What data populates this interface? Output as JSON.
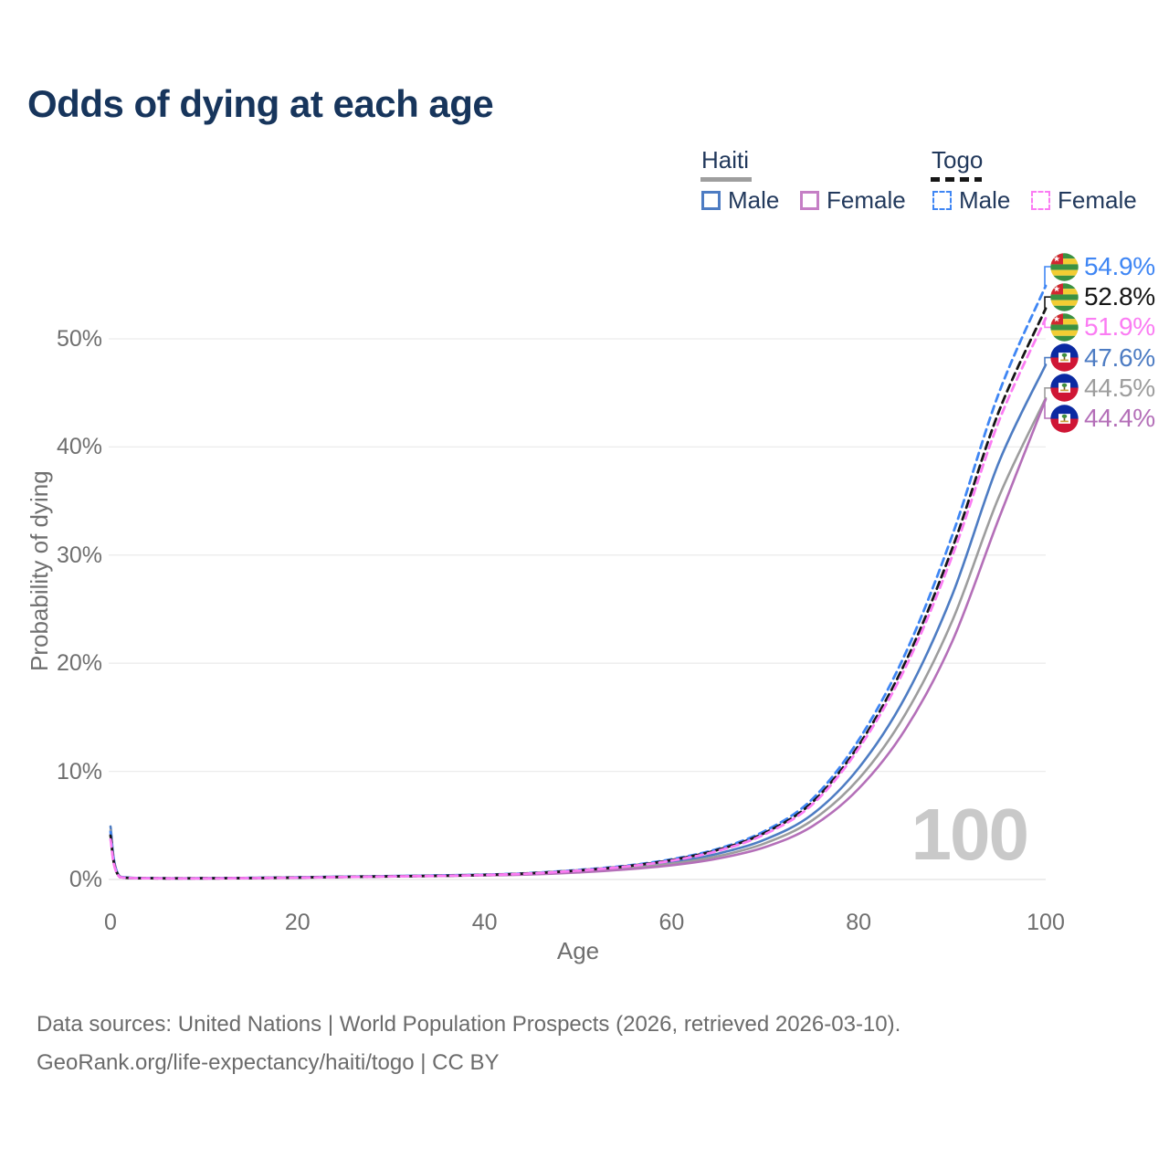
{
  "header": {
    "title": "Odds of dying at each age"
  },
  "legend": {
    "groups": [
      {
        "name": "Haiti",
        "line_style": "solid",
        "underline_color": "#9e9e9e",
        "items": [
          {
            "label": "Male",
            "color": "#4d7cc3"
          },
          {
            "label": "Female",
            "color": "#c57fc5"
          }
        ]
      },
      {
        "name": "Togo",
        "line_style": "dashed",
        "underline_color": "#161616",
        "items": [
          {
            "label": "Male",
            "color": "#3f86f4"
          },
          {
            "label": "Female",
            "color": "#fb7cf3"
          }
        ]
      }
    ]
  },
  "axes": {
    "x_label": "Age",
    "y_label": "Probability of dying",
    "x_ticks": [
      {
        "v": 0,
        "label": "0"
      },
      {
        "v": 20,
        "label": "20"
      },
      {
        "v": 40,
        "label": "40"
      },
      {
        "v": 60,
        "label": "60"
      },
      {
        "v": 80,
        "label": "80"
      },
      {
        "v": 100,
        "label": "100"
      }
    ],
    "y_ticks": [
      {
        "v": 0,
        "label": "0%"
      },
      {
        "v": 10,
        "label": "10%"
      },
      {
        "v": 20,
        "label": "20%"
      },
      {
        "v": 30,
        "label": "30%"
      },
      {
        "v": 40,
        "label": "40%"
      },
      {
        "v": 50,
        "label": "50%"
      }
    ]
  },
  "watermark_age": "100",
  "footer": {
    "line1": "Data sources: United Nations | World Population Prospects (2026, retrieved 2026-03-10).",
    "line2": "GeoRank.org/life-expectancy/haiti/togo | CC BY"
  },
  "chart_data": {
    "type": "line",
    "title": "Odds of dying at each age",
    "xlabel": "Age",
    "ylabel": "Probability of dying",
    "unit": "percent",
    "xlim": [
      0,
      100
    ],
    "ylim": [
      0,
      57
    ],
    "grid": "horizontal",
    "legend_position": "top-right",
    "ages": [
      0,
      1,
      5,
      10,
      15,
      20,
      25,
      30,
      35,
      40,
      45,
      50,
      55,
      60,
      65,
      70,
      75,
      80,
      85,
      90,
      95,
      100
    ],
    "series": [
      {
        "name": "Togo — Male",
        "country": "Togo",
        "sex": "Male",
        "flag": "togo",
        "color": "#3f86f4",
        "dashed": true,
        "end_label": "54.9%",
        "end_value": 54.9,
        "values": [
          4.4,
          0.25,
          0.12,
          0.11,
          0.14,
          0.19,
          0.25,
          0.3,
          0.36,
          0.44,
          0.6,
          0.88,
          1.26,
          1.87,
          2.85,
          4.5,
          7.4,
          12.9,
          20.9,
          31.8,
          45.0,
          54.9
        ]
      },
      {
        "name": "Togo — Both sexes",
        "country": "Togo",
        "sex": "Both",
        "flag": "togo",
        "color": "#161616",
        "dashed": true,
        "end_label": "52.8%",
        "end_value": 52.8,
        "values": [
          4.05,
          0.23,
          0.11,
          0.11,
          0.13,
          0.18,
          0.24,
          0.29,
          0.34,
          0.42,
          0.58,
          0.84,
          1.21,
          1.8,
          2.75,
          4.33,
          7.1,
          12.4,
          20.1,
          30.6,
          43.3,
          52.8
        ]
      },
      {
        "name": "Togo — Female",
        "country": "Togo",
        "sex": "Female",
        "flag": "togo",
        "color": "#fb7cf3",
        "dashed": true,
        "end_label": "51.9%",
        "end_value": 51.9,
        "values": [
          3.7,
          0.22,
          0.11,
          0.1,
          0.13,
          0.17,
          0.23,
          0.28,
          0.33,
          0.41,
          0.56,
          0.82,
          1.18,
          1.74,
          2.66,
          4.2,
          6.9,
          12.1,
          19.6,
          29.9,
          42.4,
          51.9
        ]
      },
      {
        "name": "Haiti — Male",
        "country": "Haiti",
        "sex": "Male",
        "flag": "haiti",
        "color": "#4d7cc3",
        "dashed": false,
        "end_label": "47.6%",
        "end_value": 47.6,
        "values": [
          4.9,
          0.27,
          0.13,
          0.12,
          0.15,
          0.21,
          0.27,
          0.32,
          0.38,
          0.45,
          0.57,
          0.79,
          1.12,
          1.6,
          2.4,
          3.7,
          6.0,
          10.3,
          16.9,
          26.3,
          38.6,
          47.6
        ]
      },
      {
        "name": "Haiti — Both sexes",
        "country": "Haiti",
        "sex": "Both",
        "flag": "haiti",
        "color": "#9d9d9d",
        "dashed": false,
        "end_label": "44.5%",
        "end_value": 44.5,
        "values": [
          4.55,
          0.25,
          0.12,
          0.11,
          0.14,
          0.19,
          0.25,
          0.3,
          0.35,
          0.41,
          0.52,
          0.72,
          1.02,
          1.46,
          2.16,
          3.35,
          5.45,
          9.3,
          15.3,
          23.9,
          35.4,
          44.5
        ]
      },
      {
        "name": "Haiti — Female",
        "country": "Haiti",
        "sex": "Female",
        "flag": "haiti",
        "color": "#b46fb8",
        "dashed": false,
        "end_label": "44.4%",
        "end_value": 44.4,
        "values": [
          4.2,
          0.23,
          0.11,
          0.11,
          0.13,
          0.18,
          0.23,
          0.28,
          0.32,
          0.38,
          0.47,
          0.65,
          0.92,
          1.31,
          1.94,
          3.0,
          4.9,
          8.4,
          13.9,
          22.0,
          33.4,
          44.4
        ]
      }
    ]
  }
}
